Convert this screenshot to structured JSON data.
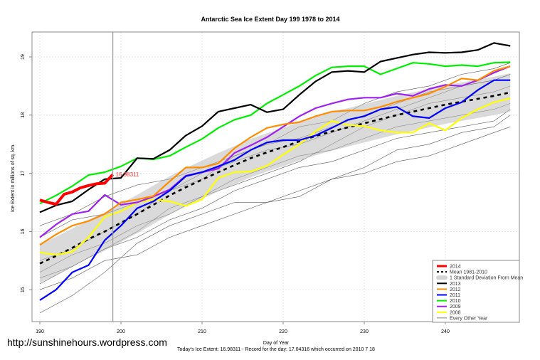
{
  "chart_data": {
    "type": "line",
    "title": "Antarctic Sea Ice Extent Day 199 1978 to 2014",
    "xlabel": "Day of Year",
    "ylabel": "Ice Extent in millions of sq. km.",
    "xlim": [
      190,
      249
    ],
    "ylim": [
      14.55,
      19.45
    ],
    "x_ticks": [
      190,
      200,
      210,
      220,
      230,
      240
    ],
    "y_ticks": [
      15,
      16,
      17,
      18,
      19
    ],
    "grid": true,
    "legend_position": "bottom-right",
    "marker_day": 199,
    "today_label": "16.98311",
    "x": [
      190,
      192,
      194,
      196,
      198,
      200,
      202,
      204,
      206,
      208,
      210,
      212,
      214,
      216,
      218,
      220,
      222,
      224,
      226,
      228,
      230,
      232,
      234,
      236,
      238,
      240,
      242,
      244,
      246,
      248
    ],
    "std_dev_band": 0.33,
    "mean": {
      "name": "Mean 1981-2010",
      "color": "#000000",
      "values": [
        15.45,
        15.58,
        15.72,
        15.87,
        16.0,
        16.15,
        16.3,
        16.46,
        16.62,
        16.76,
        16.89,
        17.02,
        17.14,
        17.26,
        17.36,
        17.45,
        17.55,
        17.64,
        17.72,
        17.79,
        17.86,
        17.93,
        18.0,
        18.06,
        18.12,
        18.18,
        18.23,
        18.28,
        18.33,
        18.39
      ]
    },
    "band_name": "1 Standard Deviation From Mean",
    "band_color": "#d3d3d3",
    "series": [
      {
        "name": "2013",
        "color": "#000000",
        "values": [
          16.33,
          16.45,
          16.52,
          16.72,
          16.9,
          16.92,
          17.26,
          17.25,
          17.4,
          17.65,
          17.81,
          18.06,
          18.12,
          18.18,
          18.05,
          18.1,
          18.35,
          18.58,
          18.74,
          18.76,
          18.74,
          18.92,
          18.98,
          19.04,
          19.08,
          19.07,
          19.08,
          19.12,
          19.24,
          19.19
        ]
      },
      {
        "name": "2012",
        "color": "#ff8c00",
        "values": [
          15.77,
          15.95,
          16.1,
          16.18,
          16.3,
          16.5,
          16.55,
          16.61,
          16.86,
          17.1,
          17.1,
          17.17,
          17.43,
          17.62,
          17.78,
          17.84,
          17.88,
          17.98,
          18.06,
          18.08,
          18.08,
          18.14,
          18.23,
          18.3,
          18.37,
          18.49,
          18.63,
          18.6,
          18.76,
          18.84
        ]
      },
      {
        "name": "2011",
        "color": "#0000ff",
        "values": [
          14.82,
          15.0,
          15.3,
          15.42,
          15.85,
          16.1,
          16.4,
          16.52,
          16.7,
          16.95,
          17.02,
          17.12,
          17.23,
          17.4,
          17.53,
          17.57,
          17.57,
          17.65,
          17.78,
          17.92,
          17.98,
          18.1,
          18.14,
          17.98,
          17.95,
          18.12,
          18.22,
          18.43,
          18.6,
          18.6
        ]
      },
      {
        "name": "2010",
        "color": "#00ee00",
        "values": [
          16.48,
          16.62,
          16.78,
          16.97,
          17.02,
          17.12,
          17.26,
          17.24,
          17.3,
          17.45,
          17.59,
          17.78,
          17.92,
          18.0,
          18.2,
          18.35,
          18.5,
          18.68,
          18.82,
          18.84,
          18.84,
          18.7,
          18.8,
          18.9,
          18.88,
          18.84,
          18.86,
          18.84,
          18.9,
          18.91
        ]
      },
      {
        "name": "2009",
        "color": "#a020f0",
        "values": [
          15.9,
          16.12,
          16.3,
          16.35,
          16.63,
          16.46,
          16.5,
          16.6,
          16.72,
          16.96,
          17.02,
          17.08,
          17.35,
          17.48,
          17.62,
          17.8,
          17.98,
          18.12,
          18.2,
          18.27,
          18.3,
          18.3,
          18.37,
          18.33,
          18.45,
          18.52,
          18.5,
          18.6,
          18.73,
          18.84
        ]
      },
      {
        "name": "2008",
        "color": "#ffff00",
        "values": [
          15.64,
          15.6,
          15.65,
          15.9,
          16.25,
          16.35,
          16.5,
          16.55,
          16.52,
          16.44,
          16.55,
          16.92,
          17.02,
          17.03,
          17.13,
          17.32,
          17.5,
          17.72,
          17.9,
          17.83,
          17.81,
          17.74,
          17.7,
          17.7,
          17.86,
          17.74,
          17.95,
          18.1,
          18.22,
          18.29
        ]
      }
    ],
    "current": {
      "name": "2014",
      "color": "#ff0000",
      "x": [
        190,
        191,
        192,
        193,
        194,
        195,
        196,
        197,
        198,
        199
      ],
      "values": [
        16.54,
        16.5,
        16.47,
        16.64,
        16.68,
        16.75,
        16.79,
        16.82,
        16.83,
        16.98
      ]
    },
    "other_years": {
      "name": "Every Other Year",
      "color": "#555555",
      "x": [
        190,
        194,
        198,
        202,
        206,
        210,
        214,
        218,
        222,
        226,
        230,
        234,
        238,
        242,
        246,
        248
      ],
      "series": [
        [
          14.6,
          14.9,
          15.3,
          15.8,
          16.1,
          16.3,
          16.5,
          16.5,
          16.7,
          16.9,
          17.0,
          17.2,
          17.3,
          17.5,
          17.7,
          17.8
        ],
        [
          15.1,
          15.4,
          15.7,
          16.0,
          16.4,
          16.6,
          16.9,
          17.1,
          17.3,
          17.4,
          17.6,
          17.8,
          17.9,
          18.0,
          18.1,
          18.2
        ],
        [
          15.9,
          16.2,
          16.3,
          16.5,
          16.7,
          16.9,
          17.3,
          17.5,
          17.8,
          17.9,
          18.2,
          18.4,
          18.5,
          18.7,
          18.8,
          18.9
        ],
        [
          15.3,
          15.6,
          15.8,
          16.1,
          16.3,
          16.6,
          16.8,
          17.0,
          17.2,
          17.5,
          17.8,
          18.0,
          18.2,
          18.3,
          18.4,
          18.5
        ],
        [
          15.5,
          15.7,
          16.0,
          16.3,
          16.7,
          17.0,
          17.2,
          17.4,
          17.5,
          17.7,
          17.9,
          18.1,
          18.3,
          18.5,
          18.6,
          18.7
        ],
        [
          15.0,
          15.2,
          15.5,
          15.6,
          15.9,
          16.1,
          16.3,
          16.5,
          16.6,
          16.9,
          17.1,
          17.4,
          17.5,
          17.7,
          17.8,
          18.0
        ],
        [
          16.1,
          16.3,
          16.6,
          16.8,
          16.9,
          17.1,
          17.3,
          17.5,
          17.6,
          17.8,
          18.0,
          18.2,
          18.4,
          18.5,
          18.6,
          18.7
        ],
        [
          15.2,
          15.4,
          15.7,
          15.9,
          16.2,
          16.4,
          16.7,
          16.9,
          17.1,
          17.2,
          17.4,
          17.6,
          17.7,
          17.8,
          17.9,
          18.1
        ]
      ]
    }
  },
  "legend": [
    "2014",
    "Mean 1981-2010",
    "1 Standard Deviation From Mean",
    "2013",
    "2012",
    "2011",
    "2010",
    "2009",
    "2008",
    "Every Other Year"
  ],
  "watermark_url": "http://sunshinehours.wordpress.com",
  "footer": "Today's Ice Extent: 16.98311  - Record for the day: 17.04316 which occurred on 2010 7 18"
}
